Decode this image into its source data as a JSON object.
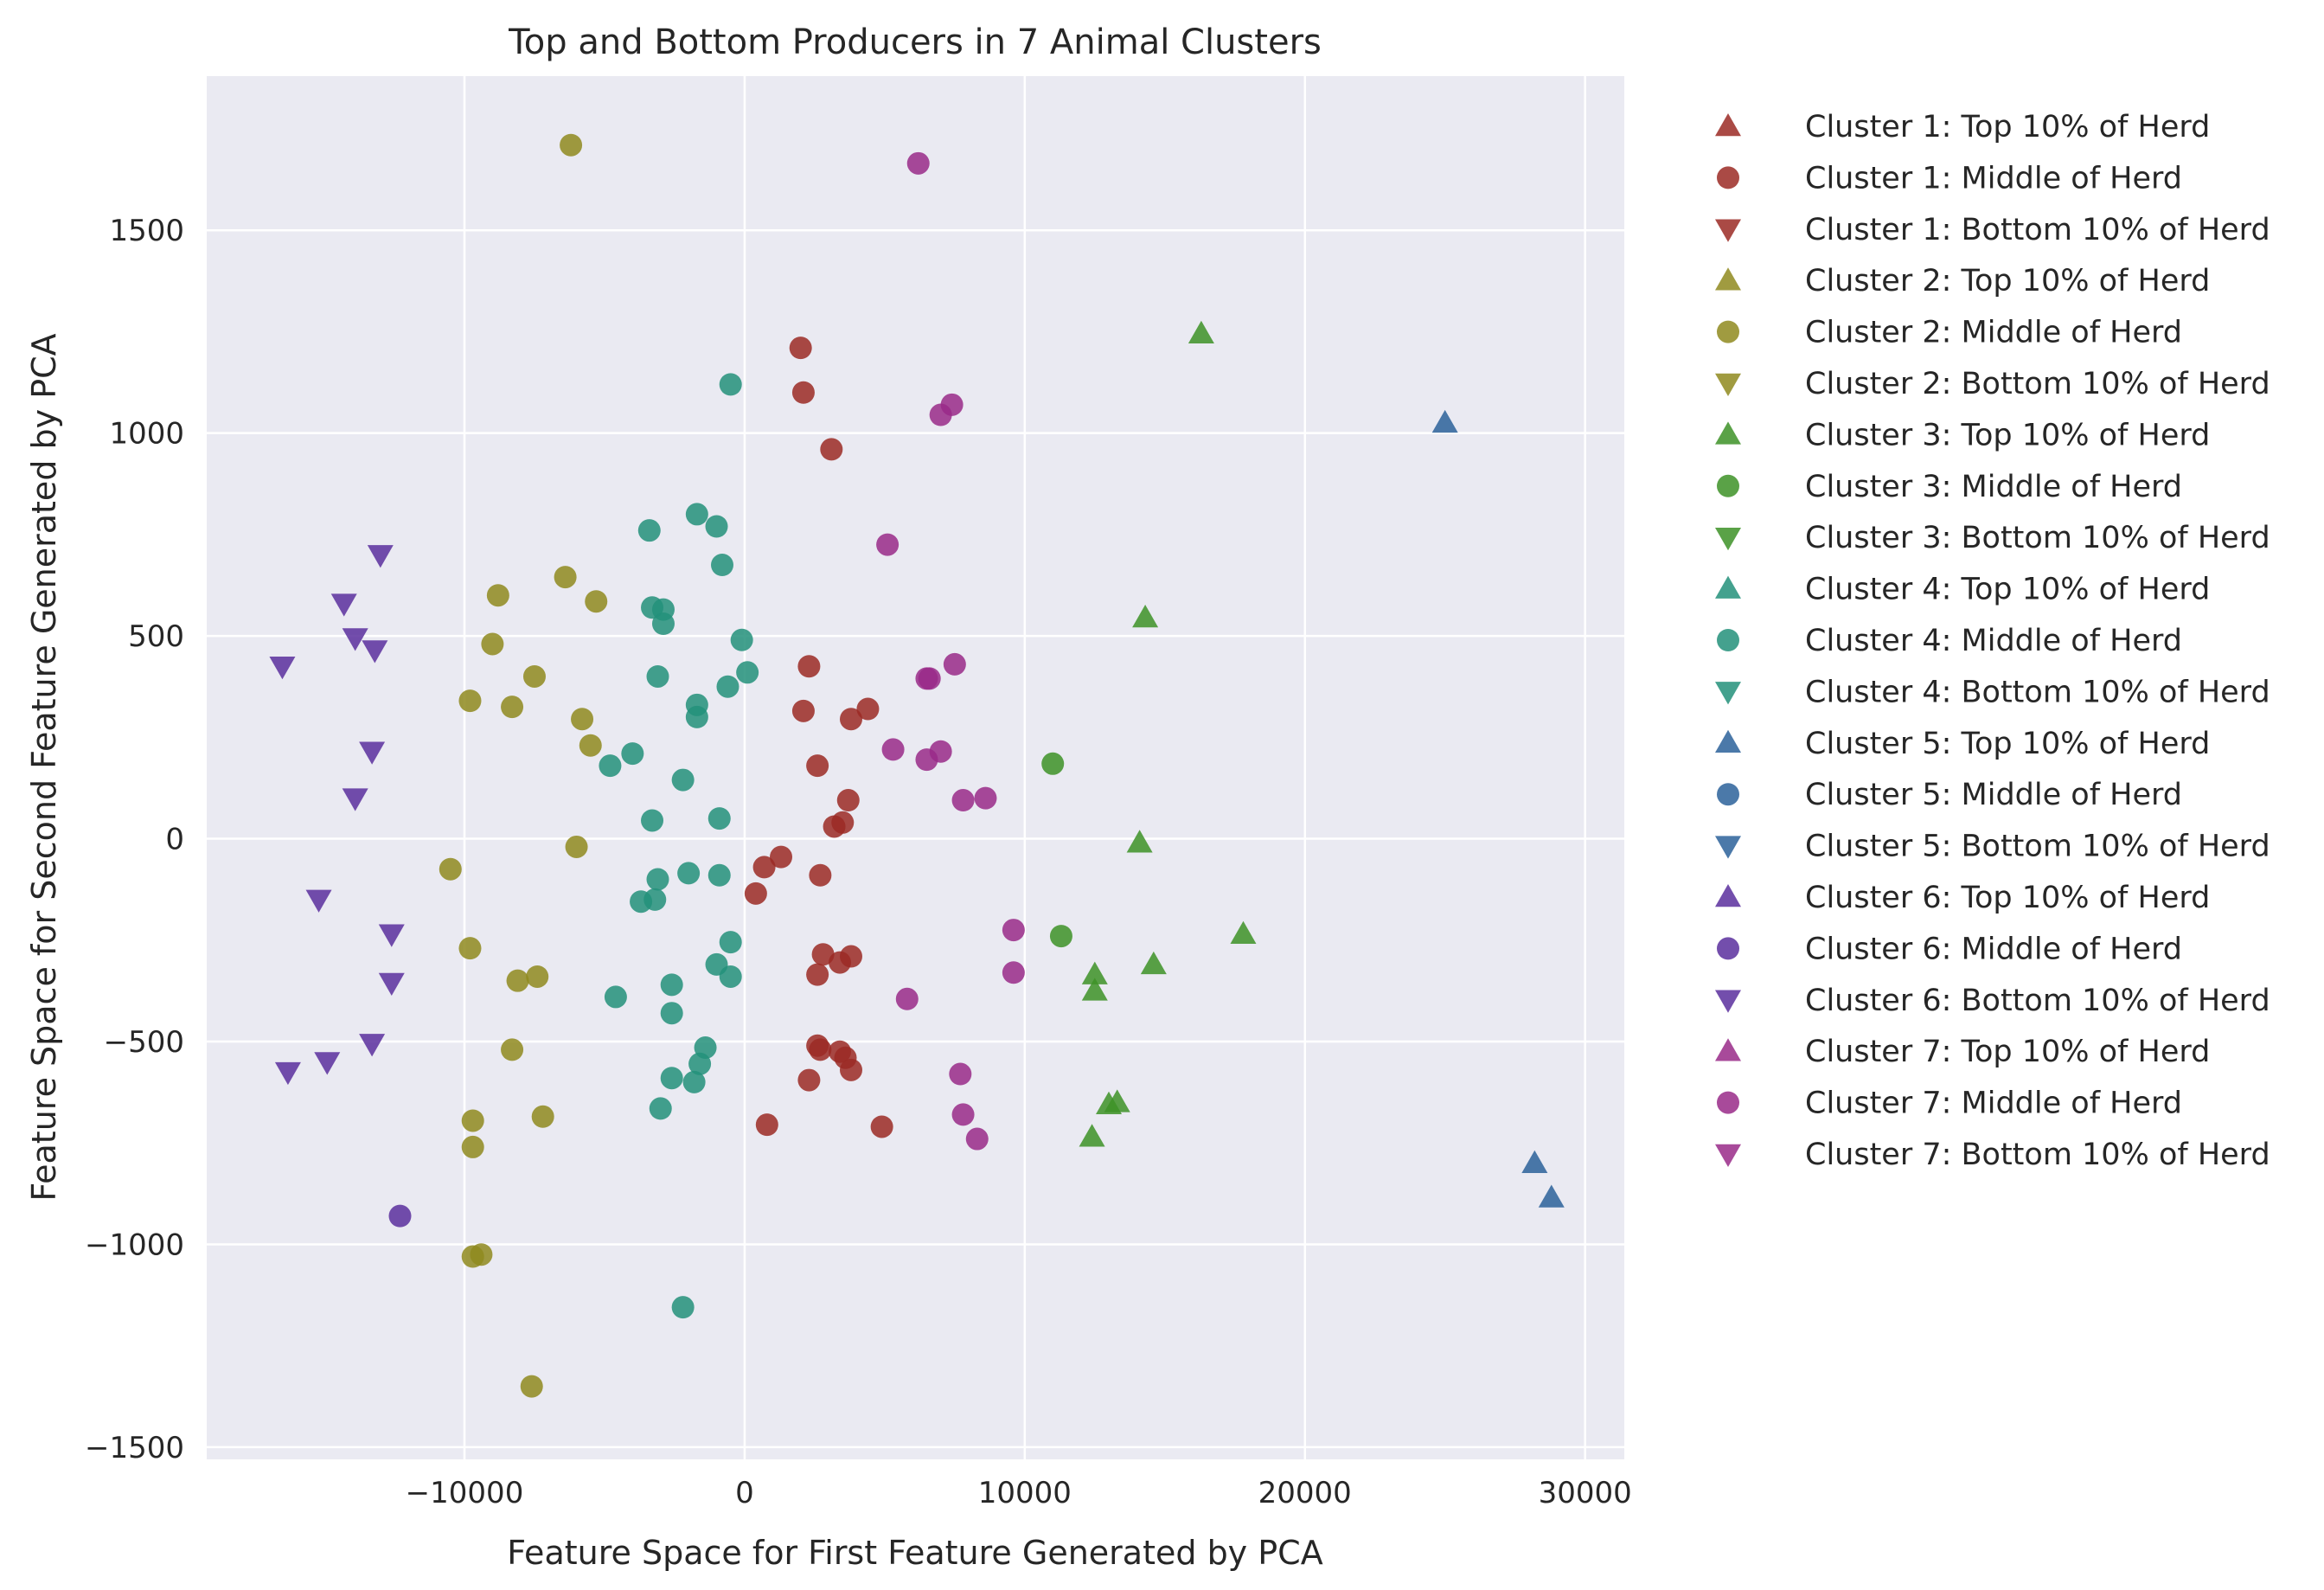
{
  "chart_data": {
    "type": "scatter",
    "title": "Top and Bottom Producers in 7 Animal Clusters",
    "xlabel": "Feature Space for First Feature Generated by PCA",
    "ylabel": "Feature Space for Second Feature Generated by PCA",
    "xlim": [
      -19200,
      31400
    ],
    "ylim": [
      -1530,
      1880
    ],
    "xticks": [
      -10000,
      0,
      10000,
      20000,
      30000
    ],
    "xtick_labels": [
      "−10000",
      "0",
      "10000",
      "20000",
      "30000"
    ],
    "yticks": [
      -1500,
      -1000,
      -500,
      0,
      500,
      1000,
      1500
    ],
    "ytick_labels": [
      "−1500",
      "−1000",
      "−500",
      "0",
      "500",
      "1000",
      "1500"
    ],
    "grid": true,
    "legend_position": "outside-right",
    "background": "#eaeaf2",
    "series": [
      {
        "name": "Cluster 1: Top 10% of Herd",
        "marker": "triangle-up",
        "color": "#9b2a25",
        "points": []
      },
      {
        "name": "Cluster 1: Middle of Herd",
        "marker": "circle",
        "color": "#9b2a25",
        "points": [
          [
            2000,
            1210
          ],
          [
            2100,
            1100
          ],
          [
            3100,
            960
          ],
          [
            2300,
            425
          ],
          [
            2100,
            315
          ],
          [
            4400,
            320
          ],
          [
            3800,
            295
          ],
          [
            2600,
            180
          ],
          [
            3700,
            95
          ],
          [
            3200,
            30
          ],
          [
            3500,
            40
          ],
          [
            1300,
            -45
          ],
          [
            700,
            -70
          ],
          [
            2700,
            -90
          ],
          [
            400,
            -135
          ],
          [
            2800,
            -285
          ],
          [
            3800,
            -290
          ],
          [
            3400,
            -305
          ],
          [
            2600,
            -335
          ],
          [
            2600,
            -510
          ],
          [
            2700,
            -520
          ],
          [
            3400,
            -525
          ],
          [
            3600,
            -540
          ],
          [
            3800,
            -570
          ],
          [
            2300,
            -595
          ],
          [
            800,
            -705
          ],
          [
            4900,
            -710
          ]
        ]
      },
      {
        "name": "Cluster 1: Bottom 10% of Herd",
        "marker": "triangle-down",
        "color": "#9b2a25",
        "points": []
      },
      {
        "name": "Cluster 2: Top 10% of Herd",
        "marker": "triangle-up",
        "color": "#8f8a1f",
        "points": []
      },
      {
        "name": "Cluster 2: Middle of Herd",
        "marker": "circle",
        "color": "#8f8a1f",
        "points": [
          [
            -6200,
            1710
          ],
          [
            -6400,
            645
          ],
          [
            -8800,
            600
          ],
          [
            -5300,
            585
          ],
          [
            -9000,
            480
          ],
          [
            -7500,
            400
          ],
          [
            -9800,
            340
          ],
          [
            -8300,
            325
          ],
          [
            -5800,
            295
          ],
          [
            -5500,
            230
          ],
          [
            -6000,
            -20
          ],
          [
            -10500,
            -75
          ],
          [
            -9800,
            -270
          ],
          [
            -8100,
            -350
          ],
          [
            -7400,
            -340
          ],
          [
            -8300,
            -520
          ],
          [
            -7200,
            -685
          ],
          [
            -9700,
            -695
          ],
          [
            -9700,
            -760
          ],
          [
            -9400,
            -1025
          ],
          [
            -9700,
            -1030
          ],
          [
            -7600,
            -1350
          ]
        ]
      },
      {
        "name": "Cluster 2: Bottom 10% of Herd",
        "marker": "triangle-down",
        "color": "#8f8a1f",
        "points": []
      },
      {
        "name": "Cluster 3: Top 10% of Herd",
        "marker": "triangle-up",
        "color": "#3d9227",
        "points": [
          [
            16300,
            1245
          ],
          [
            14300,
            545
          ],
          [
            14100,
            -10
          ],
          [
            17800,
            -235
          ],
          [
            14600,
            -310
          ],
          [
            12500,
            -335
          ],
          [
            12500,
            -375
          ],
          [
            13000,
            -655
          ],
          [
            13300,
            -650
          ],
          [
            12400,
            -735
          ]
        ]
      },
      {
        "name": "Cluster 3: Middle of Herd",
        "marker": "circle",
        "color": "#3d9227",
        "points": [
          [
            11000,
            185
          ],
          [
            11300,
            -240
          ]
        ]
      },
      {
        "name": "Cluster 3: Bottom 10% of Herd",
        "marker": "triangle-down",
        "color": "#3d9227",
        "points": []
      },
      {
        "name": "Cluster 4: Top 10% of Herd",
        "marker": "triangle-up",
        "color": "#23917a",
        "points": []
      },
      {
        "name": "Cluster 4: Middle of Herd",
        "marker": "circle",
        "color": "#23917a",
        "points": [
          [
            -500,
            1120
          ],
          [
            -1700,
            800
          ],
          [
            -1000,
            770
          ],
          [
            -3400,
            760
          ],
          [
            -800,
            675
          ],
          [
            -3300,
            570
          ],
          [
            -2900,
            565
          ],
          [
            -2900,
            530
          ],
          [
            -100,
            490
          ],
          [
            -3100,
            400
          ],
          [
            100,
            410
          ],
          [
            -600,
            375
          ],
          [
            -1700,
            330
          ],
          [
            -1700,
            300
          ],
          [
            -4000,
            210
          ],
          [
            -4800,
            180
          ],
          [
            -2200,
            145
          ],
          [
            -3300,
            45
          ],
          [
            -900,
            50
          ],
          [
            -2000,
            -85
          ],
          [
            -900,
            -90
          ],
          [
            -3100,
            -100
          ],
          [
            -3200,
            -150
          ],
          [
            -3700,
            -155
          ],
          [
            -500,
            -255
          ],
          [
            -1000,
            -310
          ],
          [
            -500,
            -340
          ],
          [
            -2600,
            -360
          ],
          [
            -4600,
            -390
          ],
          [
            -2600,
            -430
          ],
          [
            -1400,
            -515
          ],
          [
            -1600,
            -555
          ],
          [
            -2600,
            -590
          ],
          [
            -1800,
            -600
          ],
          [
            -3000,
            -665
          ],
          [
            -2200,
            -1155
          ]
        ]
      },
      {
        "name": "Cluster 4: Bottom 10% of Herd",
        "marker": "triangle-down",
        "color": "#23917a",
        "points": []
      },
      {
        "name": "Cluster 5: Top 10% of Herd",
        "marker": "triangle-up",
        "color": "#2b619a",
        "points": [
          [
            25000,
            1025
          ],
          [
            28200,
            -800
          ],
          [
            28800,
            -885
          ]
        ]
      },
      {
        "name": "Cluster 5: Middle of Herd",
        "marker": "circle",
        "color": "#2b619a",
        "points": []
      },
      {
        "name": "Cluster 5: Bottom 10% of Herd",
        "marker": "triangle-down",
        "color": "#2b619a",
        "points": []
      },
      {
        "name": "Cluster 6: Top 10% of Herd",
        "marker": "triangle-up",
        "color": "#5a2f9e",
        "points": []
      },
      {
        "name": "Cluster 6: Middle of Herd",
        "marker": "circle",
        "color": "#5a2f9e",
        "points": [
          [
            -12300,
            -930
          ]
        ]
      },
      {
        "name": "Cluster 6: Bottom 10% of Herd",
        "marker": "triangle-down",
        "color": "#5a2f9e",
        "points": [
          [
            -13000,
            700
          ],
          [
            -14300,
            580
          ],
          [
            -13900,
            495
          ],
          [
            -13200,
            465
          ],
          [
            -16500,
            425
          ],
          [
            -13300,
            215
          ],
          [
            -13900,
            100
          ],
          [
            -15200,
            -150
          ],
          [
            -12600,
            -235
          ],
          [
            -12600,
            -355
          ],
          [
            -13300,
            -505
          ],
          [
            -14900,
            -550
          ],
          [
            -16300,
            -575
          ]
        ]
      },
      {
        "name": "Cluster 7: Top 10% of Herd",
        "marker": "triangle-up",
        "color": "#992a88",
        "points": []
      },
      {
        "name": "Cluster 7: Middle of Herd",
        "marker": "circle",
        "color": "#992a88",
        "points": [
          [
            6200,
            1665
          ],
          [
            7400,
            1070
          ],
          [
            7000,
            1045
          ],
          [
            5100,
            725
          ],
          [
            7500,
            430
          ],
          [
            6500,
            395
          ],
          [
            6600,
            395
          ],
          [
            5300,
            220
          ],
          [
            7000,
            215
          ],
          [
            6500,
            195
          ],
          [
            7800,
            95
          ],
          [
            8600,
            100
          ],
          [
            9600,
            -225
          ],
          [
            5800,
            -395
          ],
          [
            9600,
            -330
          ],
          [
            7700,
            -580
          ],
          [
            7800,
            -680
          ],
          [
            8300,
            -740
          ]
        ]
      },
      {
        "name": "Cluster 7: Bottom 10% of Herd",
        "marker": "triangle-down",
        "color": "#992a88",
        "points": []
      }
    ]
  }
}
